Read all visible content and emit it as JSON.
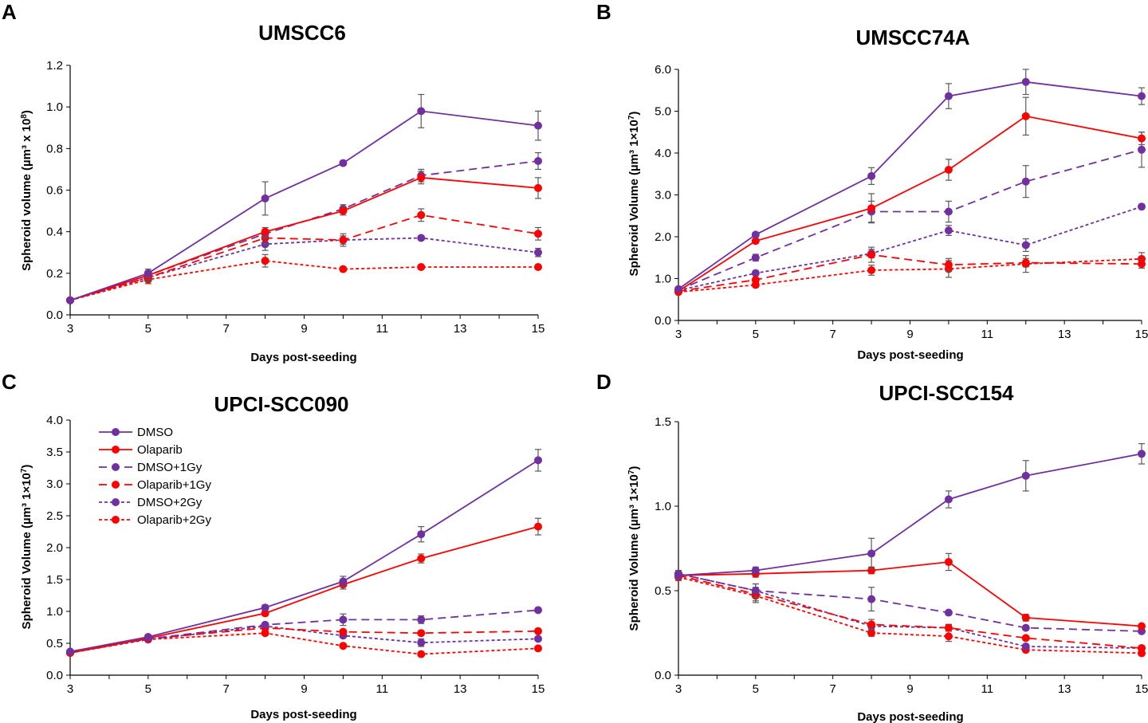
{
  "colors": {
    "purple": "#7030a0",
    "red": "#ff0000",
    "errorbar": "#595959",
    "axis": "#000000"
  },
  "chart_data": [
    {
      "panel": "A",
      "type": "line",
      "title": "UMSCC6",
      "xlabel": "Days post-seeding",
      "ylabel_main": "Spheroid volume (µm³ x 10",
      "ylabel_exp": "8",
      "ylabel_tail": ")",
      "xlim": [
        3,
        15
      ],
      "xticks": [
        "3",
        "5",
        "7",
        "9",
        "11",
        "13",
        "15"
      ],
      "ylim": [
        0,
        1.2
      ],
      "yticks": [
        "0.0",
        "0.2",
        "0.4",
        "0.6",
        "0.8",
        "1.0",
        "1.2"
      ],
      "x": [
        3,
        5,
        8,
        10,
        12,
        15
      ],
      "series": [
        {
          "name": "DMSO",
          "color": "purple",
          "dash": "solid",
          "values": [
            0.07,
            0.2,
            0.56,
            0.73,
            0.98,
            0.91
          ],
          "errors": [
            0.005,
            0.02,
            0.08,
            0.01,
            0.08,
            0.07
          ]
        },
        {
          "name": "Olaparib",
          "color": "red",
          "dash": "solid",
          "values": [
            0.07,
            0.19,
            0.4,
            0.5,
            0.66,
            0.61
          ],
          "errors": [
            0.005,
            0.02,
            0.02,
            0.02,
            0.03,
            0.05
          ]
        },
        {
          "name": "DMSO+1Gy",
          "color": "purple",
          "dash": "long",
          "values": [
            0.07,
            0.19,
            0.39,
            0.51,
            0.67,
            0.74
          ],
          "errors": [
            0.005,
            0.02,
            0.02,
            0.02,
            0.03,
            0.04
          ]
        },
        {
          "name": "Olaparib+1Gy",
          "color": "red",
          "dash": "long",
          "values": [
            0.07,
            0.18,
            0.37,
            0.36,
            0.48,
            0.39
          ],
          "errors": [
            0.005,
            0.02,
            0.03,
            0.03,
            0.03,
            0.03
          ]
        },
        {
          "name": "DMSO+2Gy",
          "color": "purple",
          "dash": "short",
          "values": [
            0.07,
            0.18,
            0.34,
            0.36,
            0.37,
            0.3
          ],
          "errors": [
            0.005,
            0.02,
            0.03,
            0.02,
            0.01,
            0.02
          ]
        },
        {
          "name": "Olaparib+2Gy",
          "color": "red",
          "dash": "short",
          "values": [
            0.07,
            0.17,
            0.26,
            0.22,
            0.23,
            0.23
          ],
          "errors": [
            0.005,
            0.02,
            0.03,
            0.01,
            0.01,
            0.01
          ]
        }
      ]
    },
    {
      "panel": "B",
      "type": "line",
      "title": "UMSCC74A",
      "xlabel": "Days post-seeding",
      "ylabel_main": "Spheroid Volume (µm³ 1×10",
      "ylabel_exp": "7",
      "ylabel_tail": ")",
      "xlim": [
        3,
        15
      ],
      "xticks": [
        "3",
        "5",
        "7",
        "9",
        "11",
        "13",
        "15"
      ],
      "ylim": [
        0,
        6
      ],
      "yticks": [
        "0.0",
        "1.0",
        "2.0",
        "3.0",
        "4.0",
        "5.0",
        "6.0"
      ],
      "x": [
        3,
        5,
        8,
        10,
        12,
        15
      ],
      "series": [
        {
          "name": "DMSO",
          "color": "purple",
          "dash": "solid",
          "values": [
            0.75,
            2.05,
            3.45,
            5.36,
            5.7,
            5.36
          ],
          "errors": [
            0.05,
            0.05,
            0.2,
            0.3,
            0.3,
            0.2
          ]
        },
        {
          "name": "Olaparib",
          "color": "red",
          "dash": "solid",
          "values": [
            0.7,
            1.9,
            2.68,
            3.6,
            4.88,
            4.35
          ],
          "errors": [
            0.05,
            0.05,
            0.35,
            0.25,
            0.45,
            0.15
          ]
        },
        {
          "name": "DMSO+1Gy",
          "color": "purple",
          "dash": "long",
          "values": [
            0.73,
            1.5,
            2.6,
            2.6,
            3.32,
            4.08
          ],
          "errors": [
            0.05,
            0.08,
            0.25,
            0.25,
            0.38,
            0.42
          ]
        },
        {
          "name": "Olaparib+1Gy",
          "color": "red",
          "dash": "long",
          "values": [
            0.7,
            0.97,
            1.57,
            1.33,
            1.38,
            1.35
          ],
          "errors": [
            0.05,
            0.05,
            0.18,
            0.15,
            0.1,
            0.1
          ]
        },
        {
          "name": "DMSO+2Gy",
          "color": "purple",
          "dash": "short",
          "values": [
            0.72,
            1.13,
            1.6,
            2.15,
            1.8,
            2.72
          ],
          "errors": [
            0.05,
            0.05,
            0.1,
            0.12,
            0.15,
            0.05
          ]
        },
        {
          "name": "Olaparib+2Gy",
          "color": "red",
          "dash": "short",
          "values": [
            0.68,
            0.85,
            1.2,
            1.23,
            1.35,
            1.47
          ],
          "errors": [
            0.05,
            0.05,
            0.12,
            0.2,
            0.2,
            0.15
          ]
        }
      ]
    },
    {
      "panel": "C",
      "type": "line",
      "title": "UPCI-SCC090",
      "xlabel": "Days post-seeding",
      "ylabel_main": "Spheroid Volume (µm³ 1×10",
      "ylabel_exp": "7",
      "ylabel_tail": ")",
      "xlim": [
        3,
        15
      ],
      "xticks": [
        "3",
        "5",
        "7",
        "9",
        "11",
        "13",
        "15"
      ],
      "ylim": [
        0,
        4
      ],
      "yticks": [
        "0.0",
        "0.5",
        "1.0",
        "1.5",
        "2.0",
        "2.5",
        "3.0",
        "3.5",
        "4.0"
      ],
      "x": [
        3,
        5,
        8,
        10,
        12,
        15
      ],
      "legend_position": "top-left",
      "series": [
        {
          "name": "DMSO",
          "color": "purple",
          "dash": "solid",
          "values": [
            0.37,
            0.6,
            1.06,
            1.47,
            2.21,
            3.37
          ],
          "errors": [
            0.02,
            0.03,
            0.04,
            0.08,
            0.12,
            0.17
          ]
        },
        {
          "name": "Olaparib",
          "color": "red",
          "dash": "solid",
          "values": [
            0.35,
            0.58,
            0.97,
            1.42,
            1.83,
            2.33
          ],
          "errors": [
            0.02,
            0.03,
            0.04,
            0.07,
            0.07,
            0.13
          ]
        },
        {
          "name": "DMSO+1Gy",
          "color": "purple",
          "dash": "long",
          "values": [
            0.36,
            0.57,
            0.79,
            0.87,
            0.87,
            1.02
          ],
          "errors": [
            0.02,
            0.03,
            0.03,
            0.09,
            0.06,
            0.02
          ]
        },
        {
          "name": "Olaparib+1Gy",
          "color": "red",
          "dash": "long",
          "values": [
            0.35,
            0.57,
            0.74,
            0.68,
            0.66,
            0.69
          ],
          "errors": [
            0.02,
            0.03,
            0.03,
            0.03,
            0.02,
            0.02
          ]
        },
        {
          "name": "DMSO+2Gy",
          "color": "purple",
          "dash": "short",
          "values": [
            0.36,
            0.56,
            0.77,
            0.62,
            0.51,
            0.57
          ],
          "errors": [
            0.02,
            0.03,
            0.03,
            0.03,
            0.06,
            0.02
          ]
        },
        {
          "name": "Olaparib+2Gy",
          "color": "red",
          "dash": "short",
          "values": [
            0.35,
            0.56,
            0.66,
            0.46,
            0.33,
            0.42
          ],
          "errors": [
            0.02,
            0.03,
            0.03,
            0.03,
            0.02,
            0.02
          ]
        }
      ]
    },
    {
      "panel": "D",
      "type": "line",
      "title": "UPCI-SCC154",
      "xlabel": "Days post-seeding",
      "ylabel_main": "Spheroid Volume (µm³ 1×10",
      "ylabel_exp": "7",
      "ylabel_tail": ")",
      "xlim": [
        3,
        15
      ],
      "xticks": [
        "3",
        "5",
        "7",
        "9",
        "11",
        "13",
        "15"
      ],
      "ylim": [
        0,
        1.5
      ],
      "yticks": [
        "0.0",
        "0.5",
        "1.0",
        "1.5"
      ],
      "x": [
        3,
        5,
        8,
        10,
        12,
        15
      ],
      "series": [
        {
          "name": "DMSO",
          "color": "purple",
          "dash": "solid",
          "values": [
            0.59,
            0.62,
            0.72,
            1.04,
            1.18,
            1.31
          ],
          "errors": [
            0.02,
            0.02,
            0.09,
            0.05,
            0.09,
            0.06
          ]
        },
        {
          "name": "Olaparib",
          "color": "red",
          "dash": "solid",
          "values": [
            0.59,
            0.6,
            0.62,
            0.67,
            0.34,
            0.29
          ],
          "errors": [
            0.02,
            0.02,
            0.02,
            0.05,
            0.02,
            0.01
          ]
        },
        {
          "name": "DMSO+1Gy",
          "color": "purple",
          "dash": "long",
          "values": [
            0.6,
            0.5,
            0.45,
            0.37,
            0.28,
            0.26
          ],
          "errors": [
            0.02,
            0.04,
            0.07,
            0.01,
            0.01,
            0.01
          ]
        },
        {
          "name": "Olaparib+1Gy",
          "color": "red",
          "dash": "long",
          "values": [
            0.59,
            0.48,
            0.3,
            0.28,
            0.22,
            0.16
          ],
          "errors": [
            0.02,
            0.04,
            0.03,
            0.02,
            0.01,
            0.01
          ]
        },
        {
          "name": "DMSO+2Gy",
          "color": "purple",
          "dash": "short",
          "values": [
            0.6,
            0.5,
            0.29,
            0.28,
            0.17,
            0.16
          ],
          "errors": [
            0.02,
            0.04,
            0.02,
            0.02,
            0.01,
            0.01
          ]
        },
        {
          "name": "Olaparib+2Gy",
          "color": "red",
          "dash": "short",
          "values": [
            0.58,
            0.47,
            0.25,
            0.23,
            0.15,
            0.13
          ],
          "errors": [
            0.02,
            0.04,
            0.02,
            0.03,
            0.01,
            0.01
          ]
        }
      ]
    }
  ]
}
